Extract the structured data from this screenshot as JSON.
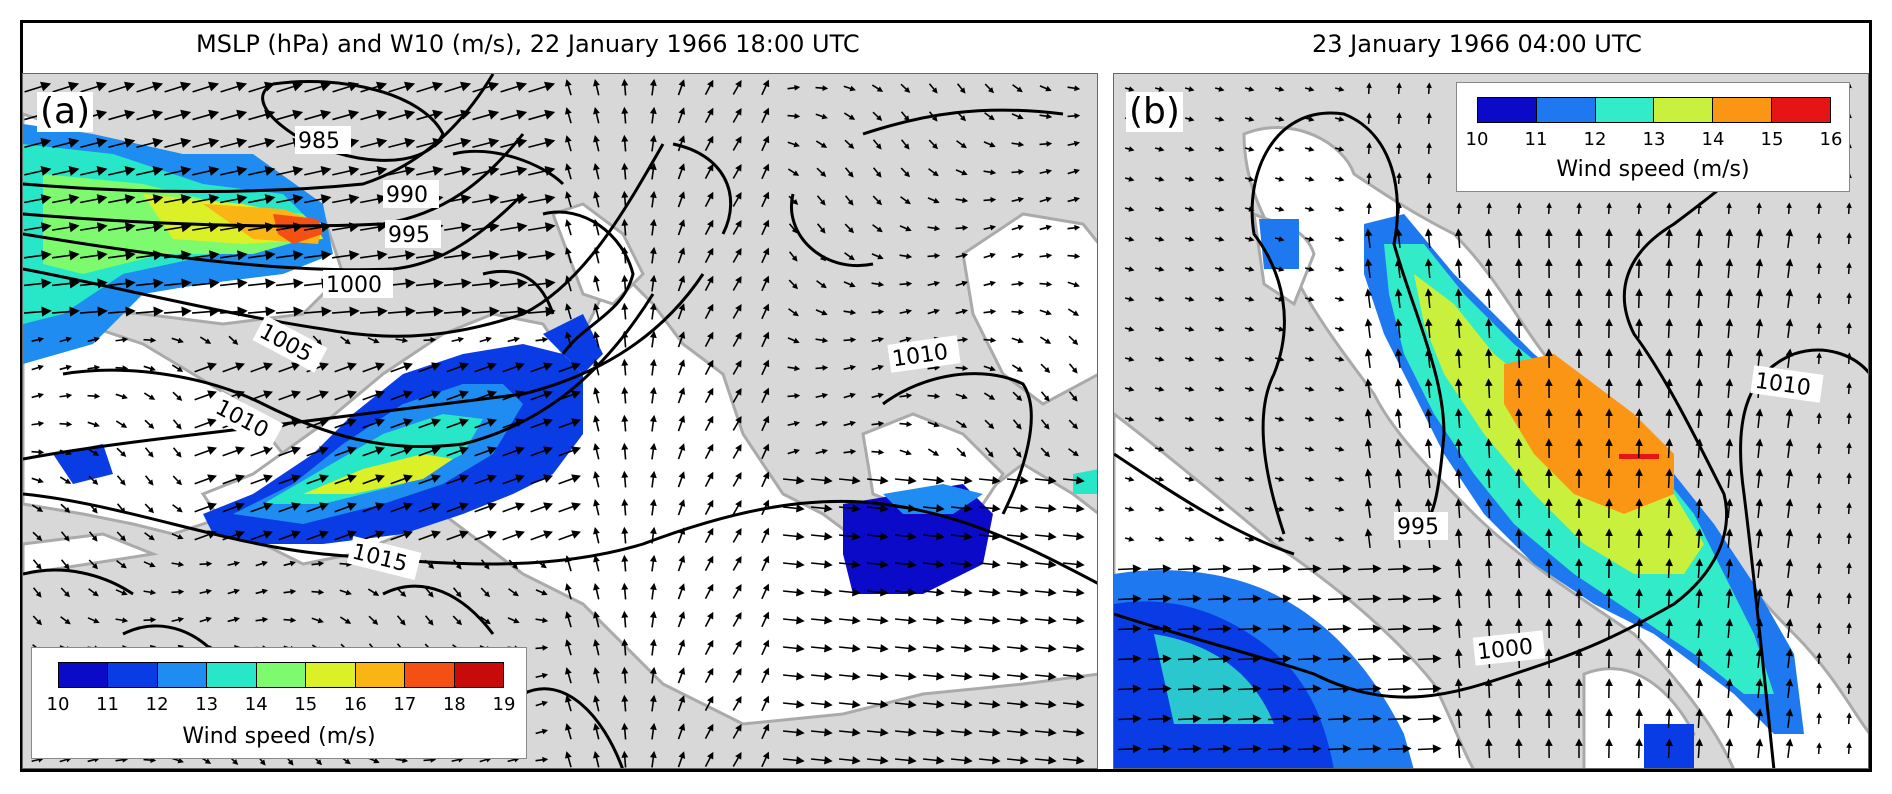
{
  "figure": {
    "panels": [
      {
        "id": "a",
        "label": "(a)",
        "title": "MSLP (hPa) and W10 (m/s), 22 January 1966 18:00 UTC",
        "contours": [
          "985",
          "990",
          "995",
          "1000",
          "1005",
          "1010",
          "1010",
          "1015"
        ],
        "colorbar": {
          "label": "Wind speed (m/s)",
          "ticks": [
            "10",
            "11",
            "12",
            "13",
            "14",
            "15",
            "16",
            "17",
            "18",
            "19"
          ],
          "colors": [
            "#0a0ac8",
            "#0a3ce6",
            "#1e8cf0",
            "#28e6c8",
            "#7dfa6e",
            "#dcf028",
            "#fab414",
            "#f55014",
            "#c80a0a"
          ]
        }
      },
      {
        "id": "b",
        "label": "(b)",
        "title": "23 January 1966 04:00 UTC",
        "contours": [
          "995",
          "1000",
          "1010"
        ],
        "colorbar": {
          "label": "Wind speed (m/s)",
          "ticks": [
            "10",
            "11",
            "12",
            "13",
            "14",
            "15",
            "16"
          ],
          "colors": [
            "#0a0ac8",
            "#1e78f0",
            "#32ebc8",
            "#c8f03c",
            "#fa9614",
            "#e61414"
          ]
        }
      }
    ],
    "colors": {
      "land": "#d8d8d8",
      "sea": "#ffffff",
      "coast": "#aaaaaa",
      "isobar": "#000000"
    }
  }
}
